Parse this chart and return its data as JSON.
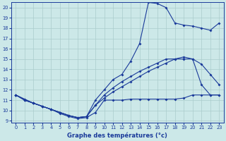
{
  "xlabel": "Graphe des températures (°c)",
  "xlim": [
    -0.5,
    23.5
  ],
  "ylim": [
    8.8,
    20.5
  ],
  "yticks": [
    9,
    10,
    11,
    12,
    13,
    14,
    15,
    16,
    17,
    18,
    19,
    20
  ],
  "xticks": [
    0,
    1,
    2,
    3,
    4,
    5,
    6,
    7,
    8,
    9,
    10,
    11,
    12,
    13,
    14,
    15,
    16,
    17,
    18,
    19,
    20,
    21,
    22,
    23
  ],
  "bg_color": "#cce8e8",
  "grid_color": "#aacccc",
  "line_color": "#1a3a9a",
  "line1_x": [
    0,
    1,
    2,
    3,
    4,
    5,
    6,
    7,
    8,
    9,
    10,
    11,
    12,
    13,
    14,
    15,
    16,
    17,
    18,
    19,
    20,
    21,
    22,
    23
  ],
  "line1_y": [
    11.5,
    11.1,
    10.7,
    10.4,
    10.1,
    9.7,
    9.4,
    9.2,
    9.3,
    9.8,
    11.0,
    11.0,
    11.0,
    11.1,
    11.1,
    11.1,
    11.1,
    11.1,
    11.1,
    11.2,
    11.5,
    11.5,
    11.5,
    11.5
  ],
  "line2_x": [
    0,
    1,
    2,
    3,
    4,
    5,
    6,
    7,
    8,
    9,
    10,
    11,
    12,
    13,
    14,
    15,
    16,
    17,
    18,
    19,
    20,
    21,
    22,
    23
  ],
  "line2_y": [
    11.5,
    11.0,
    10.7,
    10.4,
    10.1,
    9.8,
    9.5,
    9.3,
    9.4,
    10.5,
    11.2,
    11.8,
    12.3,
    12.8,
    13.3,
    13.8,
    14.2,
    14.6,
    15.0,
    15.2,
    15.0,
    14.5,
    13.5,
    12.5
  ],
  "line3_x": [
    0,
    1,
    2,
    3,
    4,
    5,
    6,
    7,
    8,
    9,
    10,
    11,
    12,
    13,
    14,
    15,
    16,
    17,
    18,
    19,
    20,
    21,
    22,
    23
  ],
  "line3_y": [
    11.5,
    11.0,
    10.7,
    10.4,
    10.1,
    9.8,
    9.5,
    9.3,
    9.4,
    11.0,
    12.0,
    13.0,
    13.5,
    14.8,
    16.5,
    20.5,
    20.4,
    20.0,
    18.5,
    18.3,
    18.2,
    18.0,
    17.8,
    18.5
  ],
  "line4_x": [
    0,
    1,
    2,
    3,
    4,
    5,
    6,
    7,
    8,
    9,
    10,
    11,
    12,
    13,
    14,
    15,
    16,
    17,
    18,
    19,
    20,
    21,
    22,
    23
  ],
  "line4_y": [
    11.5,
    11.0,
    10.7,
    10.4,
    10.1,
    9.8,
    9.5,
    9.3,
    9.4,
    10.5,
    11.5,
    12.2,
    12.8,
    13.3,
    13.8,
    14.2,
    14.6,
    15.0,
    15.0,
    15.0,
    15.0,
    12.5,
    11.5,
    11.5
  ]
}
